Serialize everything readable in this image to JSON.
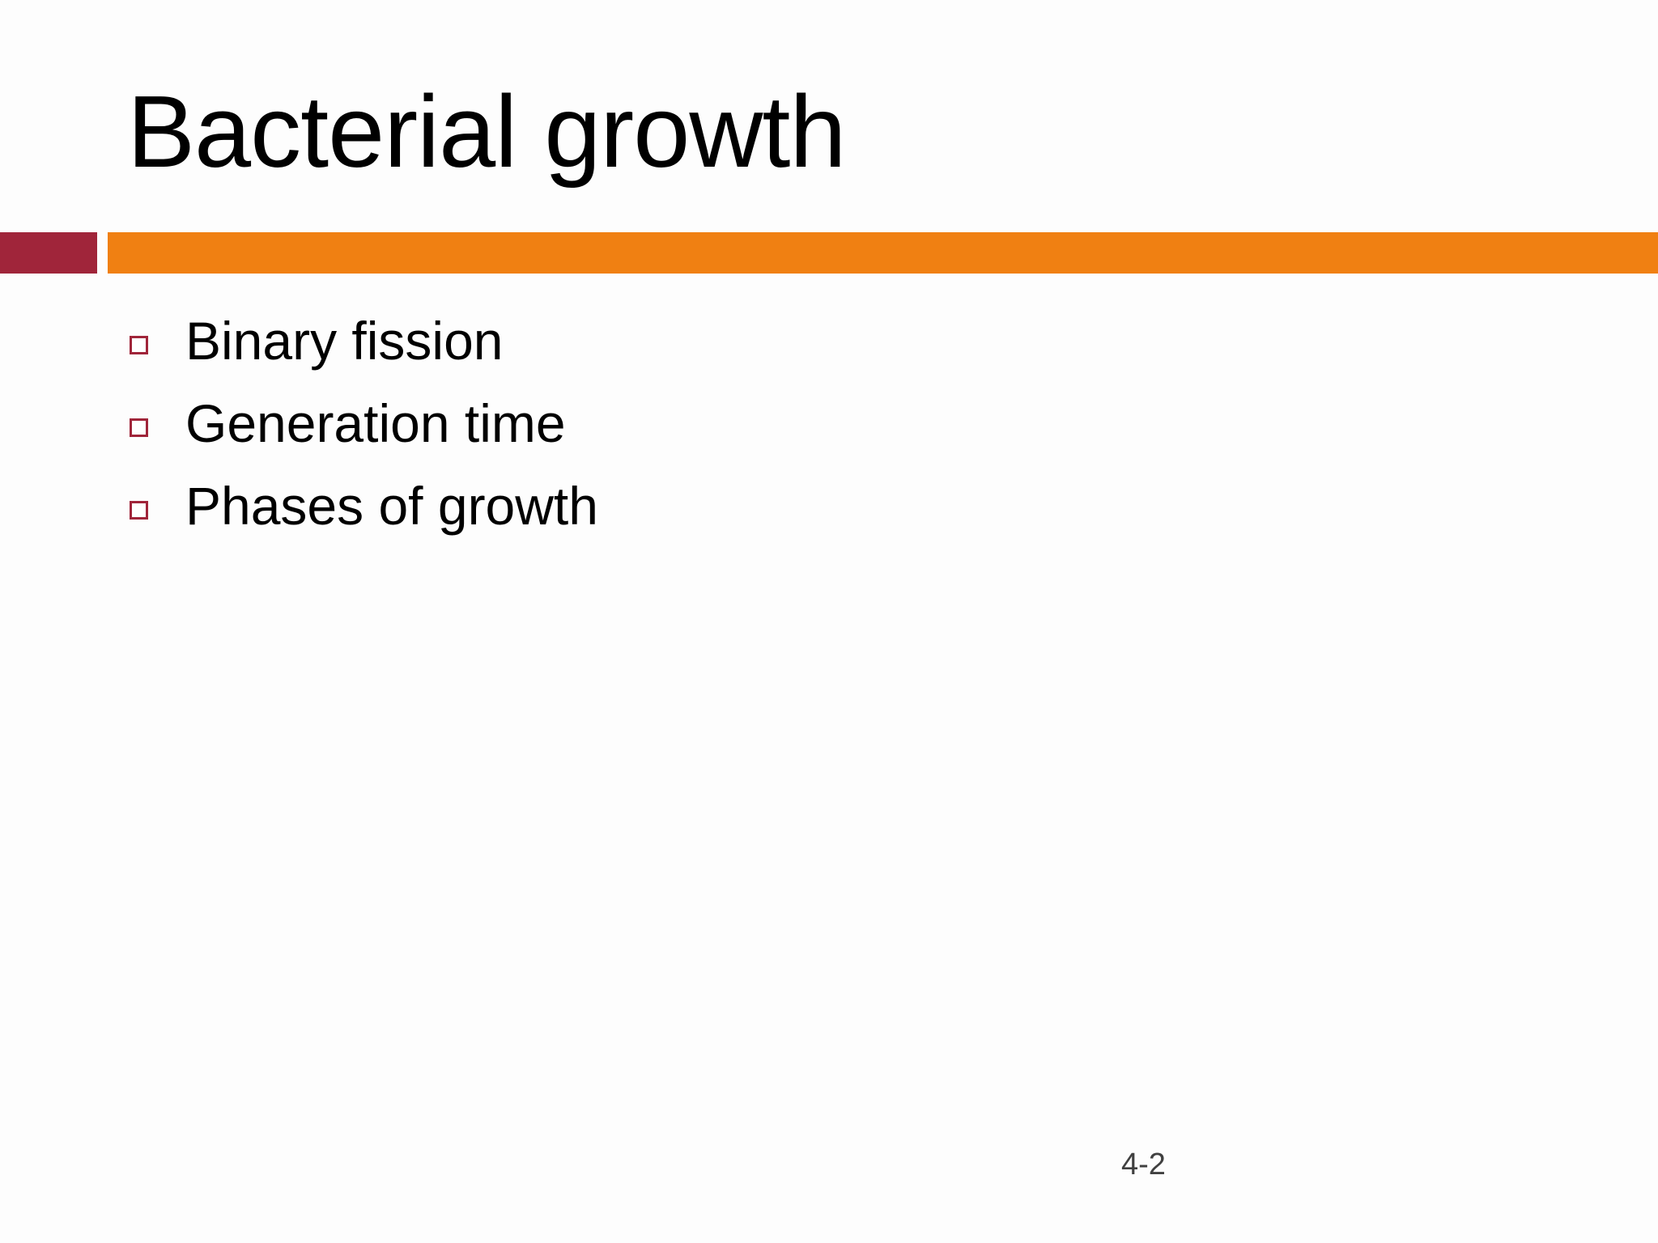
{
  "slide": {
    "title": "Bacterial growth",
    "bullets": [
      {
        "text": "Binary fission"
      },
      {
        "text": "Generation time"
      },
      {
        "text": "Phases of growth"
      }
    ],
    "slide_number": "4-2"
  },
  "colors": {
    "accent_dark_red": "#a0253a",
    "accent_orange": "#f08012",
    "background": "#fdfdfd"
  },
  "icons": {
    "bullet": "square-bullet-icon"
  }
}
